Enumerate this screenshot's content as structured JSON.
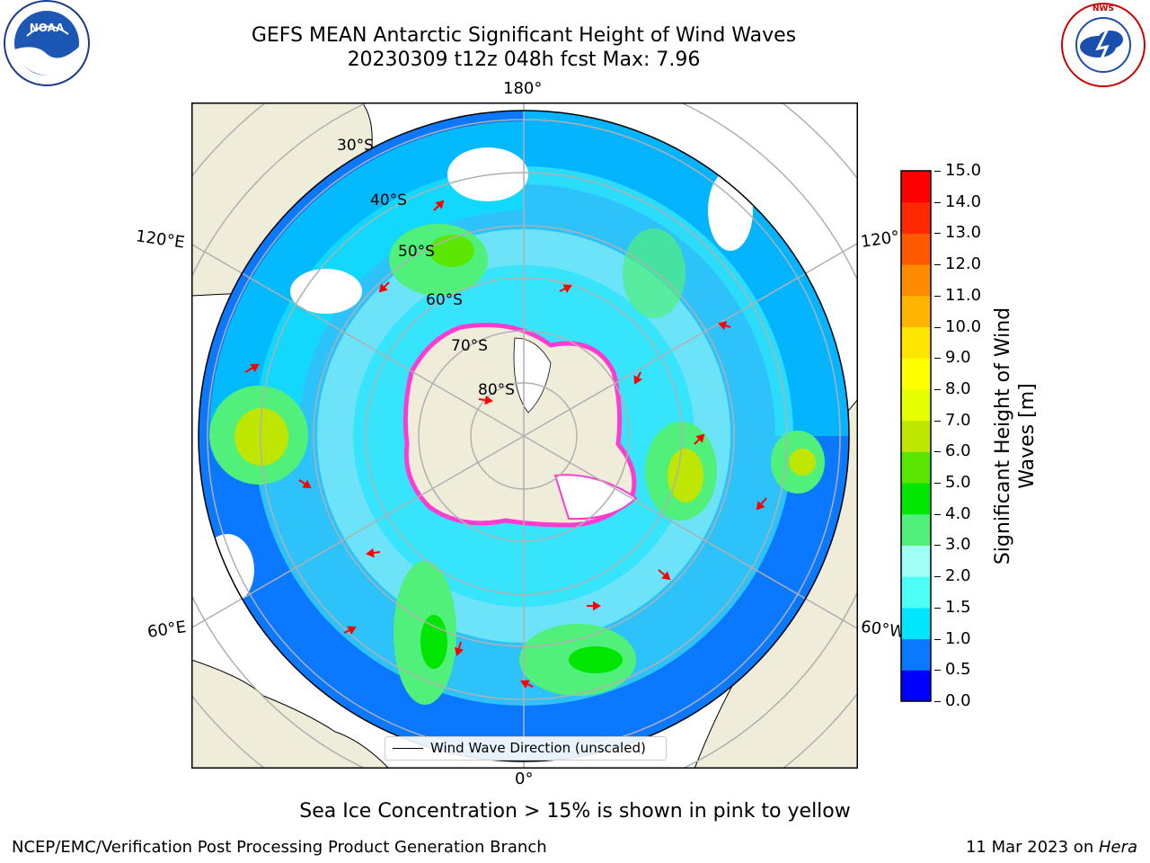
{
  "title": {
    "line1": "GEFS MEAN Antarctic Significant Height of Wind Waves",
    "line2": "20230309 t12z 048h fcst   Max: 7.96"
  },
  "map": {
    "lon_labels": {
      "top": "180°",
      "bottom": "0°",
      "left_upper": "120°E",
      "left_lower": "60°E",
      "right_upper": "120°",
      "right_lower": "60°W"
    },
    "lat_labels": [
      "30°S",
      "40°S",
      "50°S",
      "60°S",
      "70°S",
      "80°S"
    ],
    "legend_label": "Wind Wave Direction (unscaled)"
  },
  "colorbar": {
    "label_line1": "Significant Height of Wind",
    "label_line2": "Waves [m]",
    "ticks": [
      "0.0",
      "0.5",
      "1.0",
      "1.5",
      "2.0",
      "3.0",
      "4.0",
      "5.0",
      "6.0",
      "7.0",
      "8.0",
      "9.0",
      "10.0",
      "11.0",
      "12.0",
      "13.0",
      "14.0",
      "15.0"
    ],
    "colors": [
      "#0000ff",
      "#0a78ff",
      "#00e6ff",
      "#4dfff7",
      "#a0fff5",
      "#50f07a",
      "#00e600",
      "#5ae600",
      "#bee600",
      "#e6ff00",
      "#ffff00",
      "#ffe600",
      "#ffb400",
      "#ff8c00",
      "#ff5a00",
      "#ff2800",
      "#ff0000"
    ]
  },
  "logos": {
    "noaa": "NOAA",
    "nws": "NATIONAL WEATHER SERVICE"
  },
  "footer": {
    "note": "Sea Ice Concentration > 15% is shown in pink to yellow",
    "left": "NCEP/EMC/Verification Post Processing Product Generation Branch",
    "right_date": "11 Mar 2023 on ",
    "right_host": "Hera"
  }
}
